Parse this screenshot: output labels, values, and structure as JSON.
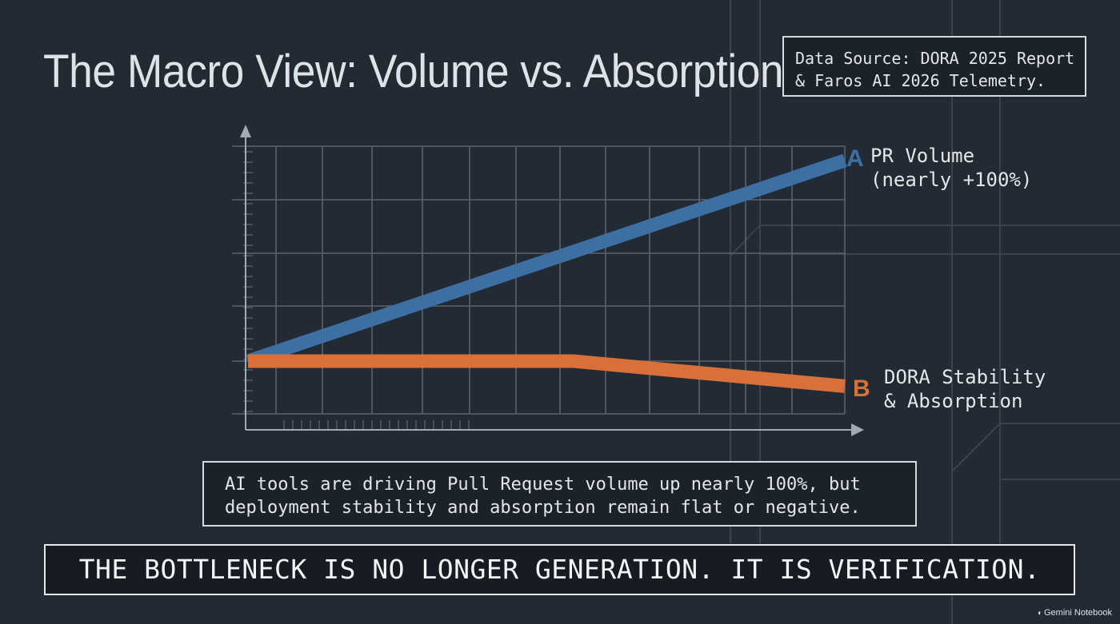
{
  "title": "The Macro View: Volume vs. Absorption",
  "source": {
    "line1": "Data Source: DORA 2025 Report",
    "line2": "& Faros AI 2026 Telemetry."
  },
  "chart_data": {
    "type": "line",
    "title": "",
    "xlabel": "",
    "ylabel": "",
    "grid": true,
    "x": [
      0,
      6,
      11
    ],
    "ylim": [
      -2,
      8
    ],
    "series": [
      {
        "name": "A",
        "label_line1": "PR Volume",
        "label_line2": "(nearly +100%)",
        "color": "#3e6fa3",
        "x": [
          0,
          11
        ],
        "values": [
          0,
          4
        ]
      },
      {
        "name": "B",
        "label_line1": "DORA Stability",
        "label_line2": "& Absorption",
        "color": "#d9703a",
        "x": [
          0,
          6,
          11
        ],
        "values": [
          0,
          0,
          -0.5
        ]
      }
    ]
  },
  "summary": {
    "line1": "AI tools are driving Pull Request volume up nearly 100%, but",
    "line2": "deployment stability and absorption remain flat or negative."
  },
  "banner": "THE BOTTLENECK IS NO LONGER GENERATION. IT IS VERIFICATION.",
  "watermark": "Gemini Notebook"
}
